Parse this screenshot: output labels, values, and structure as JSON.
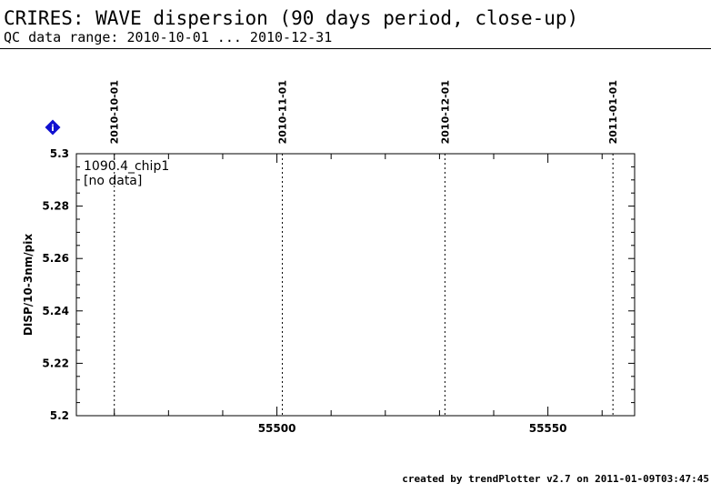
{
  "header": {
    "title": "CRIRES: WAVE dispersion (90 days period, close-up)",
    "subtitle": "QC data range: 2010-10-01 ... 2010-12-31"
  },
  "footer": {
    "text": "created by trendPlotter v2.7 on 2011-01-09T03:47:45"
  },
  "info_icon": {
    "glyph": "i",
    "color": "#1010d0",
    "icon": "info-diamond-icon"
  },
  "chart_data": {
    "type": "scatter",
    "series": [],
    "ylabel": "DISP/10-3nm/pix",
    "xlabel": "",
    "xlim": [
      55463,
      55566
    ],
    "ylim": [
      5.2,
      5.3
    ],
    "x_ticks": [
      55500,
      55550
    ],
    "x_tick_labels": [
      "55500",
      "55550"
    ],
    "y_ticks": [
      5.2,
      5.22,
      5.24,
      5.26,
      5.28,
      5.3
    ],
    "y_tick_labels": [
      "5.2",
      "5.22",
      "5.24",
      "5.26",
      "5.28",
      "5.3"
    ],
    "date_markers": [
      {
        "x": 55470,
        "label": "2010-10-01"
      },
      {
        "x": 55501,
        "label": "2010-11-01"
      },
      {
        "x": 55531,
        "label": "2010-12-01"
      },
      {
        "x": 55562,
        "label": "2011-01-01"
      }
    ],
    "annotations": [
      "1090.4_chip1",
      "[no data]"
    ],
    "grid": false
  }
}
